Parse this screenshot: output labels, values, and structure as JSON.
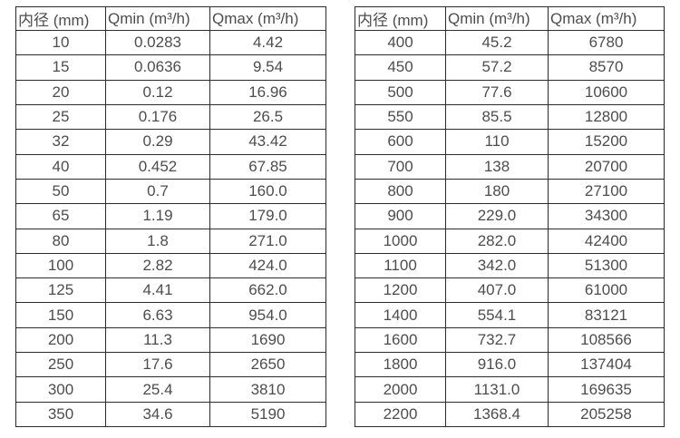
{
  "colors": {
    "background": "#ffffff",
    "border": "#2b2b2b",
    "text": "#4d4d4d"
  },
  "chart_data": [
    {
      "type": "table",
      "headers": [
        "内径 (mm)",
        "Qmin (m³/h)",
        "Qmax (m³/h)"
      ],
      "rows": [
        [
          "10",
          "0.0283",
          "4.42"
        ],
        [
          "15",
          "0.0636",
          "9.54"
        ],
        [
          "20",
          "0.12",
          "16.96"
        ],
        [
          "25",
          "0.176",
          "26.5"
        ],
        [
          "32",
          "0.29",
          "43.42"
        ],
        [
          "40",
          "0.452",
          "67.85"
        ],
        [
          "50",
          "0.7",
          "160.0"
        ],
        [
          "65",
          "1.19",
          "179.0"
        ],
        [
          "80",
          "1.8",
          "271.0"
        ],
        [
          "100",
          "2.82",
          "424.0"
        ],
        [
          "125",
          "4.41",
          "662.0"
        ],
        [
          "150",
          "6.63",
          "954.0"
        ],
        [
          "200",
          "11.3",
          "1690"
        ],
        [
          "250",
          "17.6",
          "2650"
        ],
        [
          "300",
          "25.4",
          "3810"
        ],
        [
          "350",
          "34.6",
          "5190"
        ]
      ]
    },
    {
      "type": "table",
      "headers": [
        "内径 (mm)",
        "Qmin (m³/h)",
        "Qmax (m³/h)"
      ],
      "rows": [
        [
          "400",
          "45.2",
          "6780"
        ],
        [
          "450",
          "57.2",
          "8570"
        ],
        [
          "500",
          "77.6",
          "10600"
        ],
        [
          "550",
          "85.5",
          "12800"
        ],
        [
          "600",
          "110",
          "15200"
        ],
        [
          "700",
          "138",
          "20700"
        ],
        [
          "800",
          "180",
          "27100"
        ],
        [
          "900",
          "229.0",
          "34300"
        ],
        [
          "1000",
          "282.0",
          "42400"
        ],
        [
          "1100",
          "342.0",
          "51300"
        ],
        [
          "1200",
          "407.0",
          "61000"
        ],
        [
          "1400",
          "554.1",
          "83121"
        ],
        [
          "1600",
          "732.7",
          "108566"
        ],
        [
          "1800",
          "916.0",
          "137404"
        ],
        [
          "2000",
          "1131.0",
          "169635"
        ],
        [
          "2200",
          "1368.4",
          "205258"
        ]
      ]
    }
  ]
}
